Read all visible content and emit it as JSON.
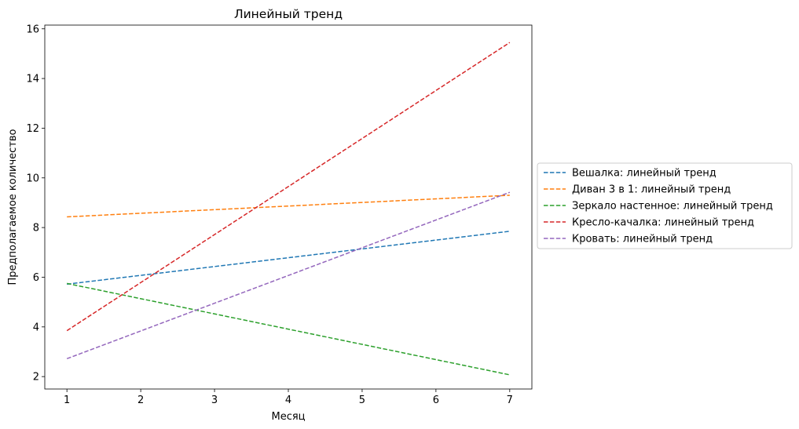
{
  "chart_data": {
    "type": "line",
    "title": "Линейный тренд",
    "xlabel": "Месяц",
    "ylabel": "Предполагаемое количество",
    "xlim": [
      0.7,
      7.3
    ],
    "ylim": [
      1.5,
      16.15
    ],
    "x_ticks": [
      1,
      2,
      3,
      4,
      5,
      6,
      7
    ],
    "y_ticks": [
      2,
      4,
      6,
      8,
      10,
      12,
      14,
      16
    ],
    "grid": false,
    "legend_position": "center-right-outside",
    "line_style": "dashed",
    "series": [
      {
        "name": "Вешалка: линейный тренд",
        "color": "#1f77b4",
        "x": [
          1,
          7
        ],
        "y": [
          5.72,
          7.85
        ]
      },
      {
        "name": "Диван 3 в 1: линейный тренд",
        "color": "#ff7f0e",
        "x": [
          1,
          7
        ],
        "y": [
          8.43,
          9.3
        ]
      },
      {
        "name": "Зеркало настенное: линейный тренд",
        "color": "#2ca02c",
        "x": [
          1,
          7
        ],
        "y": [
          5.75,
          2.07
        ]
      },
      {
        "name": "Кресло-качалка: линейный тренд",
        "color": "#d62728",
        "x": [
          1,
          7
        ],
        "y": [
          3.85,
          15.45
        ]
      },
      {
        "name": "Кровать: линейный тренд",
        "color": "#9467bd",
        "x": [
          1,
          7
        ],
        "y": [
          2.72,
          9.42
        ]
      }
    ]
  }
}
